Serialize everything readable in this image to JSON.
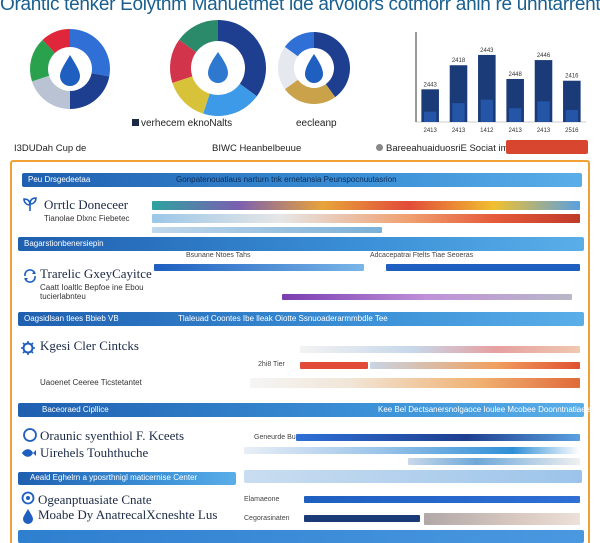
{
  "header": {
    "title": "Orantic tenker Eolythm Manuetmet ide arvolors cotmorr anin re unntarrents"
  },
  "donuts": [
    {
      "slices": [
        {
          "value": 28,
          "color": "#2f6fd6"
        },
        {
          "value": 22,
          "color": "#1e3f8f"
        },
        {
          "value": 20,
          "color": "#b9c3d4"
        },
        {
          "value": 18,
          "color": "#2aa24d"
        },
        {
          "value": 12,
          "color": "#e0263a"
        }
      ],
      "center_icon": "water-drop-icon"
    },
    {
      "slices": [
        {
          "value": 35,
          "color": "#1e3f8f"
        },
        {
          "value": 20,
          "color": "#3d9ae8"
        },
        {
          "value": 15,
          "color": "#d8c23a"
        },
        {
          "value": 15,
          "color": "#d1344b"
        },
        {
          "value": 15,
          "color": "#2a8a6a"
        }
      ],
      "center_icon": "water-drop-icon"
    },
    {
      "slices": [
        {
          "value": 40,
          "color": "#1e3f8f"
        },
        {
          "value": 25,
          "color": "#c9a24a"
        },
        {
          "value": 20,
          "color": "#e5e8ee"
        },
        {
          "value": 15,
          "color": "#2f6fd6"
        }
      ],
      "center_icon": "water-drop-icon"
    }
  ],
  "donut_legends": {
    "left": "verhecem eknoNalts",
    "right": "eecleanp"
  },
  "chart_data": {
    "type": "bar",
    "categories": [
      "2413",
      "2413",
      "1412",
      "2413",
      "2413",
      "2516"
    ],
    "series": [
      {
        "values": [
          38,
          66,
          78,
          50,
          72,
          48
        ],
        "color": "#1b3a78"
      },
      {
        "values": [
          12,
          22,
          26,
          16,
          24,
          14
        ],
        "color": "#2f6fd6"
      }
    ],
    "value_labels": [
      "2443",
      "2418",
      "2443",
      "2448",
      "2446",
      "2416"
    ],
    "ylim": [
      0,
      100
    ]
  },
  "info_row": {
    "left": "I3DUDah Cup de",
    "center": "BIWC Heanbelbeuue",
    "right": "BareeahuaiduosriE Sociat ime"
  },
  "section_bands": [
    {
      "label": "Peu Drsgedeetaa",
      "right": "Gonpatenouatiaus narturn tnk ernetansia Peunspocnuutasrion"
    },
    {
      "label": "Bagarstionbenersiepin"
    },
    {
      "label": "Oagsidlsan tlees Bbieb VB",
      "right": "Tlaleuad Coontes Ibe lleak Oiotte Ssnuoaderarmmbdle Tee"
    },
    {
      "label": "Baceoraed Cipllice",
      "right": "Kee Bel Dectsanersnolgaoce Ioulee Mcobee Doonntnatiaeiseeee"
    },
    {
      "label": "Aeald Eghelrn a yposrthnigl maticernise Center"
    }
  ],
  "sections": [
    {
      "title": "Orrtlc Doneceer",
      "sub": "Tianolae Dlxnc Fiebetec",
      "icon": "sprout-icon"
    },
    {
      "title": "Trarelic GxeyCayitce",
      "sub": "Caatt Ioaltlc Bepfoe ine Ebou tucierlabnteu",
      "icon": "cycle-icon"
    },
    {
      "title": "Kgesi Cler Cintcks",
      "sub": "Uaoenet Ceeree Ticstetantet",
      "icon": "gear-icon"
    },
    {
      "title": "Oraunic syenthiol F. Kceets",
      "sub": "",
      "icon": "leaf-icon"
    },
    {
      "title": "Uirehels Touhthuche",
      "sub": "",
      "icon": "fish-icon"
    },
    {
      "title": "Ogeanptuasiate Cnate",
      "sub": "",
      "icon": "pin-icon"
    },
    {
      "title": "Moabe Dy AnatrecalXcneshte Lus",
      "sub": "",
      "icon": "drop-icon"
    }
  ],
  "row_labels": [
    "Bsunane Ntoes Tahs",
    "Adcacepatrai Ftelts Tiae Seoeras",
    "2hi8 Tier",
    "Geneurde Bunt",
    "Elamaeone",
    "Cegorasinaten"
  ]
}
